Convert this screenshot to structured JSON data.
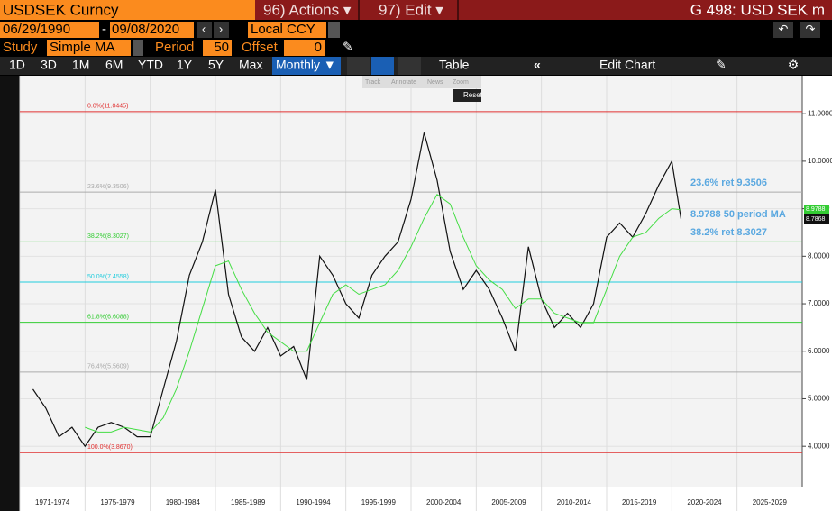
{
  "header": {
    "security": "USDSEK Curncy",
    "actions": "96) Actions ▾",
    "edit": "97) Edit ▾",
    "function": "G 498: USD SEK m"
  },
  "dates": {
    "start": "06/29/1990",
    "separator": "-",
    "end": "09/08/2020",
    "currency": "Local CCY"
  },
  "study": {
    "label": "Study",
    "value": "Simple MA",
    "period_label": "Period",
    "period": "50",
    "offset_label": "Offset",
    "offset": "0"
  },
  "ranges": [
    "1D",
    "3D",
    "1M",
    "6M",
    "YTD",
    "1Y",
    "5Y",
    "Max"
  ],
  "frequency": "Monthly ▼",
  "table": "Table",
  "edit_chart": "Edit Chart",
  "palette": [
    "Track",
    "Annotate",
    "News",
    "Zoom"
  ],
  "reset": "Reset",
  "chart_data": {
    "type": "line",
    "x": [
      1971,
      1972,
      1973,
      1974,
      1975,
      1976,
      1977,
      1978,
      1979,
      1980,
      1981,
      1982,
      1983,
      1984,
      1985,
      1986,
      1987,
      1988,
      1989,
      1990,
      1991,
      1992,
      1993,
      1994,
      1995,
      1996,
      1997,
      1998,
      1999,
      2000,
      2001,
      2002,
      2003,
      2004,
      2005,
      2006,
      2007,
      2008,
      2009,
      2010,
      2011,
      2012,
      2013,
      2014,
      2015,
      2016,
      2017,
      2018,
      2019,
      2020,
      2020.7
    ],
    "series": [
      {
        "color": "#111111",
        "values": [
          5.2,
          4.8,
          4.2,
          4.4,
          4.0,
          4.4,
          4.5,
          4.4,
          4.2,
          4.2,
          5.2,
          6.2,
          7.6,
          8.3,
          9.4,
          7.2,
          6.3,
          6.0,
          6.5,
          5.9,
          6.1,
          5.4,
          8.0,
          7.6,
          7.0,
          6.7,
          7.6,
          8.0,
          8.3,
          9.2,
          10.6,
          9.6,
          8.1,
          7.3,
          7.7,
          7.3,
          6.7,
          6.0,
          8.2,
          7.1,
          6.5,
          6.8,
          6.5,
          7.0,
          8.4,
          8.7,
          8.4,
          8.9,
          9.5,
          10.0,
          8.7868
        ]
      },
      {
        "color": "#44dd44",
        "values": [
          null,
          null,
          null,
          null,
          4.4,
          4.3,
          4.3,
          4.4,
          4.35,
          4.3,
          4.6,
          5.2,
          6.0,
          6.9,
          7.8,
          7.9,
          7.3,
          6.8,
          6.4,
          6.2,
          6.0,
          6.0,
          6.6,
          7.2,
          7.4,
          7.2,
          7.3,
          7.4,
          7.7,
          8.2,
          8.8,
          9.3,
          9.1,
          8.4,
          7.8,
          7.5,
          7.3,
          6.9,
          7.1,
          7.1,
          6.8,
          6.7,
          6.6,
          6.6,
          7.3,
          8.0,
          8.4,
          8.5,
          8.8,
          9.0,
          8.9788
        ]
      }
    ],
    "xlim": [
      1970,
      2030
    ],
    "xticks": [
      {
        "value": 1970,
        "label": "1971-1974"
      },
      {
        "value": 1975,
        "label": "1975-1979"
      },
      {
        "value": 1980,
        "label": "1980-1984"
      },
      {
        "value": 1985,
        "label": "1985-1989"
      },
      {
        "value": 1990,
        "label": "1990-1994"
      },
      {
        "value": 1995,
        "label": "1995-1999"
      },
      {
        "value": 2000,
        "label": "2000-2004"
      },
      {
        "value": 2005,
        "label": "2005-2009"
      },
      {
        "value": 2010,
        "label": "2010-2014"
      },
      {
        "value": 2015,
        "label": "2015-2019"
      },
      {
        "value": 2020,
        "label": "2020-2024"
      },
      {
        "value": 2025,
        "label": "2025-2029"
      }
    ],
    "ylim": [
      3.15,
      11.8
    ],
    "yticks": [
      {
        "value": 4,
        "label": "4.0000"
      },
      {
        "value": 5,
        "label": "5.0000"
      },
      {
        "value": 6,
        "label": "6.0000"
      },
      {
        "value": 7,
        "label": "7.0000"
      },
      {
        "value": 8,
        "label": "8.0000"
      },
      {
        "value": 9,
        "label": "9.0000"
      },
      {
        "value": 10,
        "label": "10.0000"
      },
      {
        "value": 11,
        "label": "11.0000"
      }
    ],
    "grid": true,
    "levels": [
      {
        "label": "0.0%(11.0445)",
        "value": 11.0445,
        "color": "#e03030"
      },
      {
        "label": "23.6%(9.3506)",
        "value": 9.3506,
        "color": "#aaaaaa"
      },
      {
        "label": "38.2%(8.3027)",
        "value": 8.3027,
        "color": "#33cc33"
      },
      {
        "label": "50.0%(7.4558)",
        "value": 7.4558,
        "color": "#22ccdd"
      },
      {
        "label": "61.8%(6.6088)",
        "value": 6.6088,
        "color": "#33cc33"
      },
      {
        "label": "76.4%(5.5609)",
        "value": 5.5609,
        "color": "#aaaaaa"
      },
      {
        "label": "100.0%(3.8670)",
        "value": 3.867,
        "color": "#e03030"
      }
    ],
    "annotations": [
      "23.6% ret 9.3506",
      "8.9788 50 period MA",
      "38.2% ret 8.3027"
    ],
    "tags": [
      {
        "label": "8.9788",
        "color": "#33cc33"
      },
      {
        "label": "8.7868",
        "color": "#111111"
      }
    ]
  }
}
